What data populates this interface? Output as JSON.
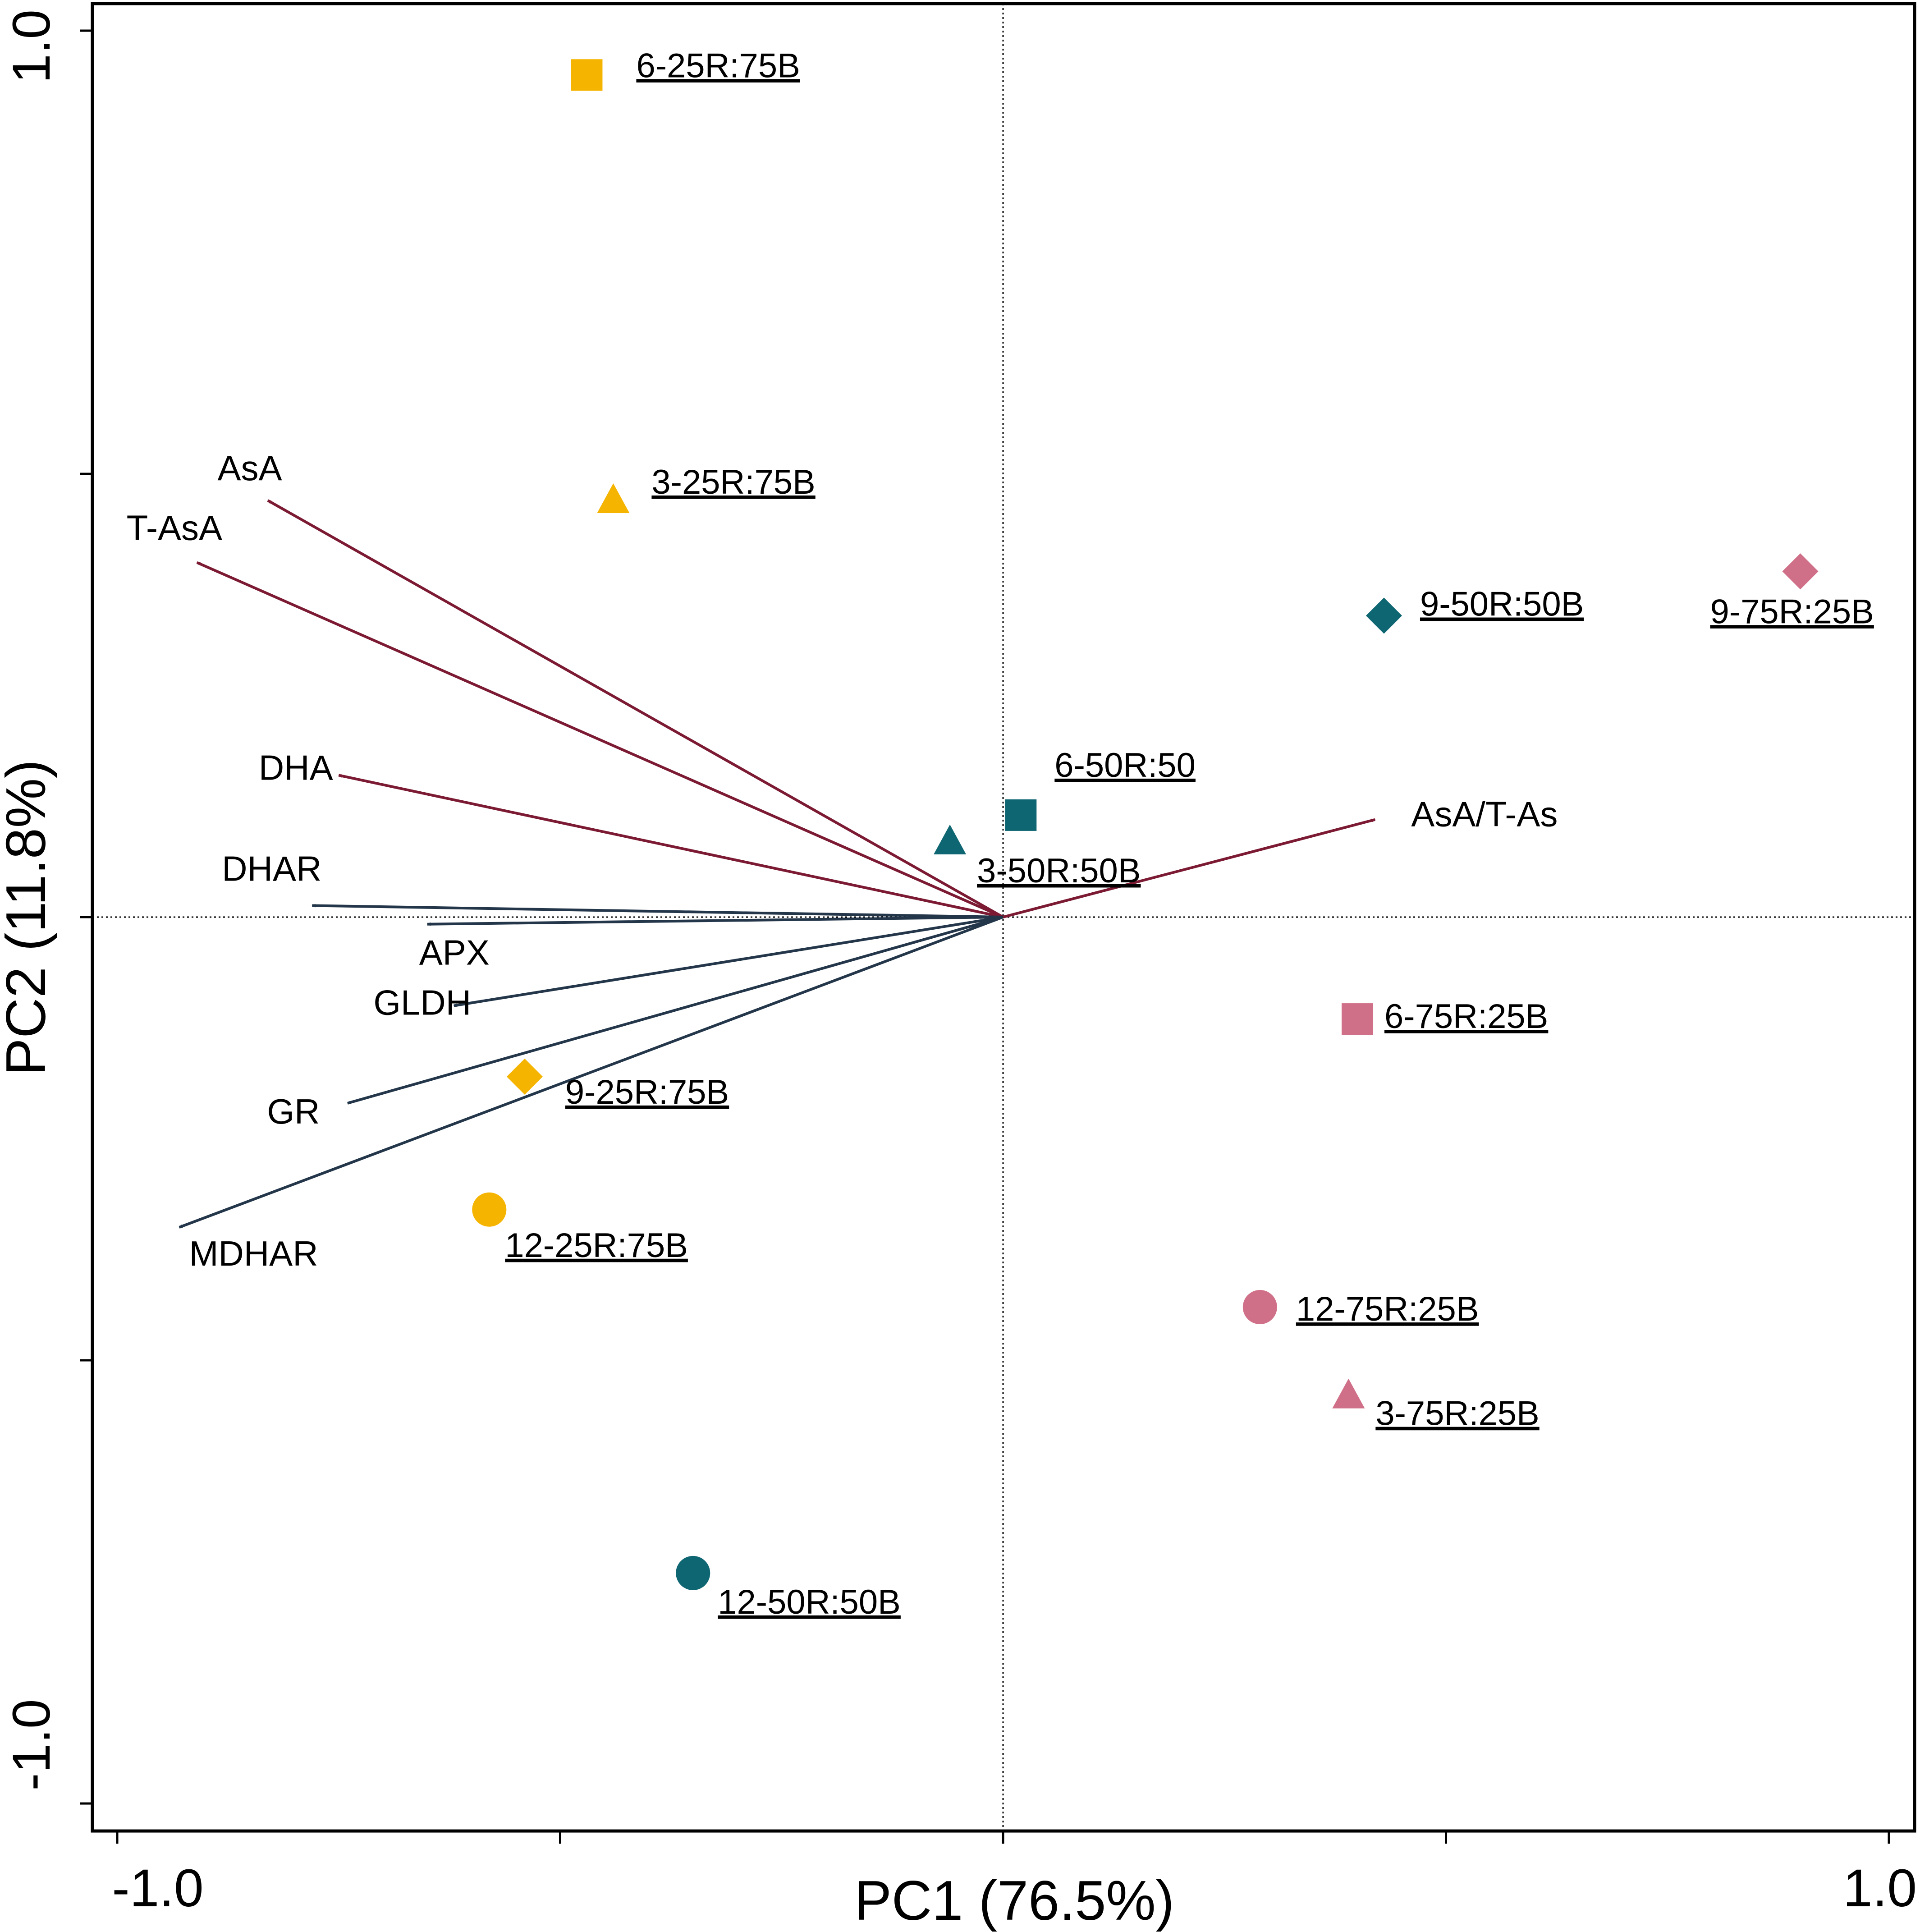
{
  "chart_data": {
    "type": "scatter",
    "subtype": "pca-biplot",
    "xlabel": "PC1 (76.5%)",
    "ylabel": "PC2 (11.8%)",
    "xlim": [
      -1.0,
      1.0
    ],
    "ylim": [
      -1.0,
      1.0
    ],
    "x_ticks": [
      -1.0,
      -0.5,
      0.0,
      0.5,
      1.0
    ],
    "y_ticks": [
      -1.0,
      -0.5,
      0.0,
      0.5,
      1.0
    ],
    "x_tick_labels": [
      "-1.0",
      "1.0"
    ],
    "y_tick_labels": [
      "-1.0",
      "1.0"
    ],
    "reference_lines": {
      "x": 0,
      "y": 0,
      "style": "dotted"
    },
    "colors": {
      "positive_loading": "#7B1A32",
      "negative_loading": "#23364A",
      "25R:75B": "#F5B400",
      "50R:50B": "#0E6672",
      "75R:25B": "#D07088"
    },
    "vectors": [
      {
        "label": "AsA",
        "x": -0.83,
        "y": 0.47,
        "color": "#7B1A32"
      },
      {
        "label": "T-AsA",
        "x": -0.91,
        "y": 0.4,
        "color": "#7B1A32"
      },
      {
        "label": "DHA",
        "x": -0.75,
        "y": 0.16,
        "color": "#7B1A32"
      },
      {
        "label": "AsA/T-As",
        "x": 0.42,
        "y": 0.11,
        "color": "#7B1A32"
      },
      {
        "label": "DHAR",
        "x": -0.78,
        "y": 0.013,
        "color": "#23364A"
      },
      {
        "label": "APX",
        "x": -0.65,
        "y": -0.008,
        "color": "#23364A"
      },
      {
        "label": "GLDH",
        "x": -0.62,
        "y": -0.1,
        "color": "#23364A"
      },
      {
        "label": "GR",
        "x": -0.74,
        "y": -0.21,
        "color": "#23364A"
      },
      {
        "label": "MDHAR",
        "x": -0.93,
        "y": -0.35,
        "color": "#23364A"
      }
    ],
    "points": [
      {
        "label": "6-25R:75B",
        "x": -0.47,
        "y": 0.95,
        "marker": "square",
        "color": "#F5B400"
      },
      {
        "label": "3-25R:75B",
        "x": -0.44,
        "y": 0.47,
        "marker": "triangle",
        "color": "#F5B400"
      },
      {
        "label": "9-25R:75B",
        "x": -0.54,
        "y": -0.18,
        "marker": "diamond",
        "color": "#F5B400"
      },
      {
        "label": "12-25R:75B",
        "x": -0.58,
        "y": -0.33,
        "marker": "circle",
        "color": "#F5B400"
      },
      {
        "label": "6-50R:50",
        "x": 0.02,
        "y": 0.115,
        "marker": "square",
        "color": "#0E6672"
      },
      {
        "label": "3-50R:50B",
        "x": -0.06,
        "y": 0.085,
        "marker": "triangle",
        "color": "#0E6672"
      },
      {
        "label": "9-50R:50B",
        "x": 0.43,
        "y": 0.34,
        "marker": "diamond",
        "color": "#0E6672"
      },
      {
        "label": "12-50R:50B",
        "x": -0.35,
        "y": -0.74,
        "marker": "circle",
        "color": "#0E6672"
      },
      {
        "label": "9-75R:25B",
        "x": 0.9,
        "y": 0.39,
        "marker": "diamond",
        "color": "#D07088"
      },
      {
        "label": "6-75R:25B",
        "x": 0.4,
        "y": -0.115,
        "marker": "square",
        "color": "#D07088"
      },
      {
        "label": "12-75R:25B",
        "x": 0.29,
        "y": -0.44,
        "marker": "circle",
        "color": "#D07088"
      },
      {
        "label": "3-75R:25B",
        "x": 0.39,
        "y": -0.54,
        "marker": "triangle",
        "color": "#D07088"
      }
    ]
  }
}
